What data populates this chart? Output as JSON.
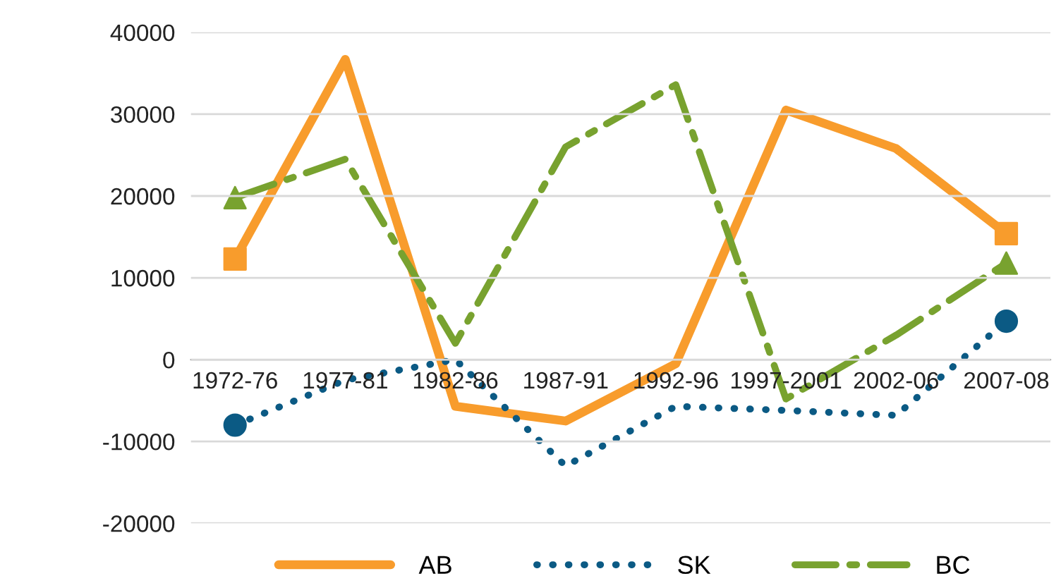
{
  "chart_data": {
    "type": "line",
    "categories": [
      "1972-76",
      "1977-81",
      "1982-86",
      "1987-91",
      "1992-96",
      "1997-2001",
      "2002-06",
      "2007-08"
    ],
    "series": [
      {
        "name": "AB",
        "color": "#f89c2c",
        "line_style": "solid",
        "values": [
          12300,
          36700,
          -5700,
          -7500,
          -500,
          30500,
          25800,
          15400
        ]
      },
      {
        "name": "SK",
        "color": "#0b5a84",
        "line_style": "dotted",
        "values": [
          -8000,
          -2500,
          0,
          -13000,
          -5700,
          -6200,
          -6800,
          4700
        ]
      },
      {
        "name": "BC",
        "color": "#78a22f",
        "line_style": "dashed",
        "values": [
          19800,
          24500,
          2000,
          26000,
          33600,
          -4800,
          3000,
          11800
        ]
      }
    ],
    "ylim": [
      -20000,
      40000
    ],
    "yticks": [
      -20000,
      -10000,
      0,
      10000,
      20000,
      30000,
      40000
    ],
    "grid": "y",
    "legend": "bottom"
  }
}
